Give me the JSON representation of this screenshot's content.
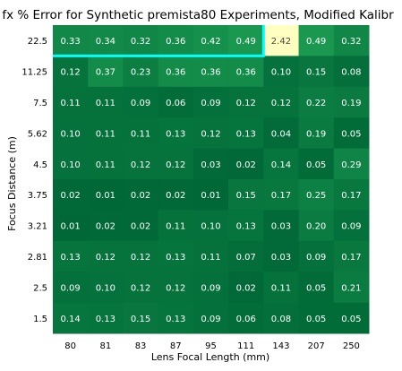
{
  "chart_data": {
    "type": "heatmap",
    "title": "fx % Error for Synthetic premista80 Experiments, Modified Kalibr",
    "xlabel": "Lens Focal Length (mm)",
    "ylabel": "Focus Distance (m)",
    "x_categories": [
      "80",
      "81",
      "83",
      "87",
      "95",
      "111",
      "143",
      "207",
      "250"
    ],
    "y_categories": [
      "22.5",
      "11.25",
      "7.5",
      "5.62",
      "4.5",
      "3.75",
      "3.21",
      "2.81",
      "2.5",
      "1.5"
    ],
    "values": [
      [
        "0.33",
        "0.34",
        "0.32",
        "0.36",
        "0.42",
        "0.49",
        "2.42",
        "0.49",
        "0.32"
      ],
      [
        "0.12",
        "0.37",
        "0.23",
        "0.36",
        "0.36",
        "0.36",
        "0.10",
        "0.15",
        "0.08"
      ],
      [
        "0.11",
        "0.11",
        "0.09",
        "0.06",
        "0.09",
        "0.12",
        "0.12",
        "0.22",
        "0.19"
      ],
      [
        "0.10",
        "0.11",
        "0.11",
        "0.13",
        "0.12",
        "0.13",
        "0.04",
        "0.19",
        "0.05"
      ],
      [
        "0.10",
        "0.11",
        "0.12",
        "0.12",
        "0.03",
        "0.02",
        "0.14",
        "0.05",
        "0.29"
      ],
      [
        "0.02",
        "0.01",
        "0.02",
        "0.02",
        "0.01",
        "0.15",
        "0.17",
        "0.25",
        "0.17"
      ],
      [
        "0.01",
        "0.02",
        "0.02",
        "0.11",
        "0.10",
        "0.13",
        "0.03",
        "0.20",
        "0.09"
      ],
      [
        "0.13",
        "0.12",
        "0.12",
        "0.13",
        "0.11",
        "0.07",
        "0.03",
        "0.09",
        "0.17"
      ],
      [
        "0.09",
        "0.10",
        "0.12",
        "0.12",
        "0.09",
        "0.02",
        "0.11",
        "0.05",
        "0.21"
      ],
      [
        "0.14",
        "0.13",
        "0.15",
        "0.13",
        "0.09",
        "0.06",
        "0.08",
        "0.05",
        "0.05"
      ]
    ],
    "highlight_rows": [
      "22.5"
    ],
    "highlight_row_span_x": [
      "80",
      "111"
    ],
    "colormap": [
      "#006837",
      "#1a9850",
      "#66bd63",
      "#a6d96a",
      "#d9ef8b",
      "#ffffbf"
    ],
    "highlight_color": "#00ffff",
    "text_color": "#ffffff",
    "text_color_light_cells": "#444444",
    "grid": false
  }
}
